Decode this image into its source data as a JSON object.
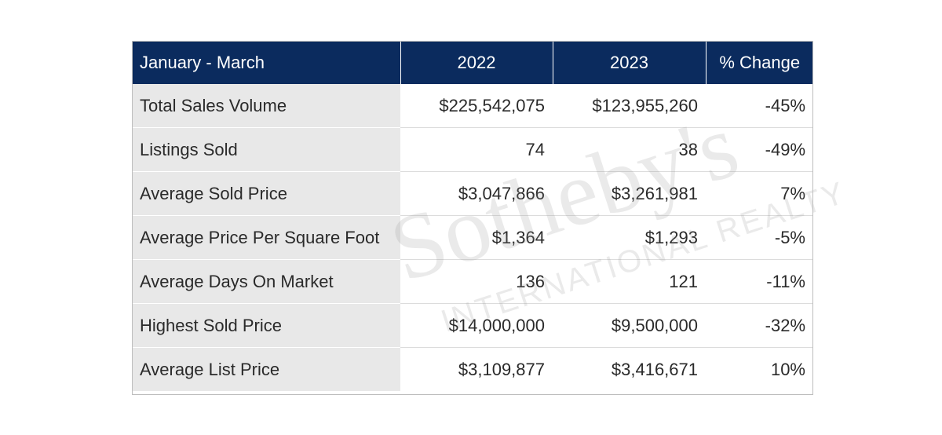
{
  "table": {
    "header": {
      "label": "January - March",
      "col_2022": "2022",
      "col_2023": "2023",
      "col_change": "% Change"
    },
    "rows": [
      {
        "label": "Total Sales Volume",
        "v2022": "$225,542,075",
        "v2023": "$123,955,260",
        "change": "-45%"
      },
      {
        "label": "Listings Sold",
        "v2022": "74",
        "v2023": "38",
        "change": "-49%"
      },
      {
        "label": "Average Sold Price",
        "v2022": "$3,047,866",
        "v2023": "$3,261,981",
        "change": "7%"
      },
      {
        "label": "Average Price Per Square Foot",
        "v2022": "$1,364",
        "v2023": "$1,293",
        "change": "-5%"
      },
      {
        "label": "Average Days On Market",
        "v2022": "136",
        "v2023": "121",
        "change": "-11%"
      },
      {
        "label": "Highest Sold Price",
        "v2022": "$14,000,000",
        "v2023": "$9,500,000",
        "change": "-32%"
      },
      {
        "label": "Average List Price",
        "v2022": "$3,109,877",
        "v2023": "$3,416,671",
        "change": "10%"
      }
    ]
  },
  "watermark": {
    "main": "Sotheby's",
    "sub": "INTERNATIONAL REALTY"
  },
  "colors": {
    "header_bg": "#0b2b5e",
    "label_col_bg": "#e8e8e8"
  }
}
